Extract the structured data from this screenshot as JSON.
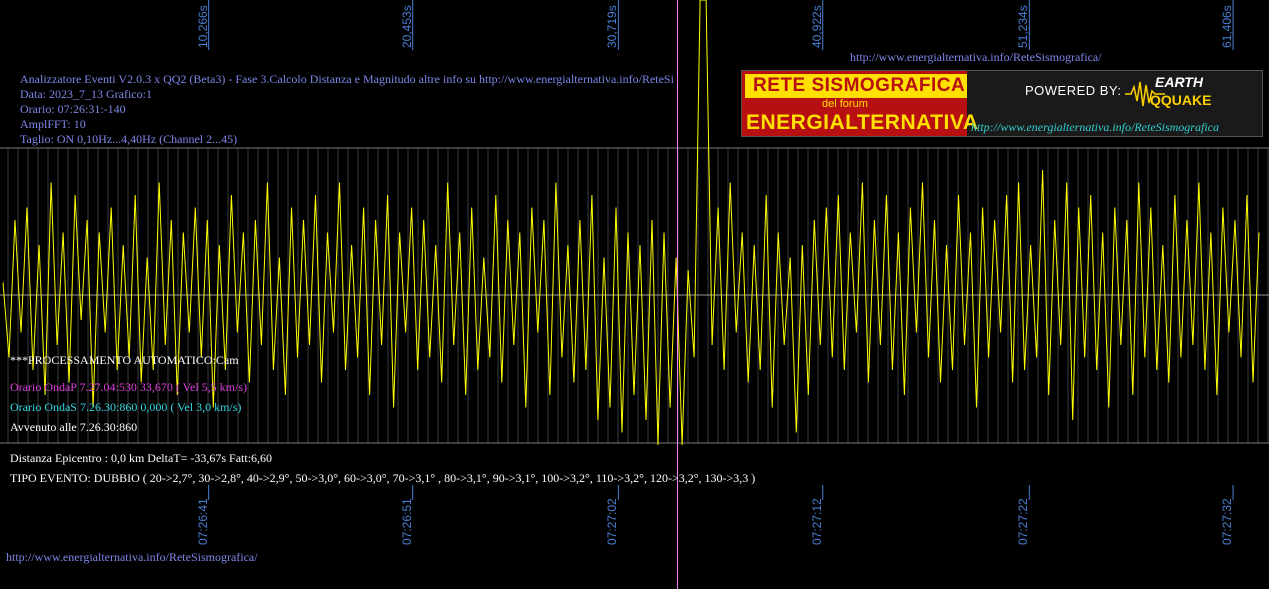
{
  "header": {
    "title_line": "Analizzatore Eventi V2.0.3 x QQ2 (Beta3) - Fase 3.Calcolo Distanza e Magnitudo altre info su http://www.energialternativa.info/ReteSi",
    "data_line": "Data: 2023_7_13 Grafico:1",
    "orario_line": "Orario: 07:26:31:-140",
    "ampl_line": "AmplFFT: 10",
    "taglio_line": "Taglio: ON 0,10Hz...4,40Hz      (Channel 2...45)"
  },
  "top_url": "http://www.energialternativa.info/ReteSismografica/",
  "bottom_url": "http://www.energialternativa.info/ReteSismografica/",
  "logo": {
    "line1": "RETE SISMOGRAFICA",
    "line2": "del forum",
    "line3": "ENERGIALTERNATIVA",
    "powered": "POWERED BY:",
    "brand1": "EARTH",
    "brand2": "QQUAKE",
    "url": "http://www.energialternativa.info/ReteSismografica"
  },
  "processing": {
    "auto": "***PROCESSAMENTO AUTOMATICO:Cam",
    "onda_p": "Orario OndaP 7.27.04:530  33,670 ( Vel 5,5 km/s)",
    "onda_s": "Orario OndaS 7.26.30:860  0,000 ( Vel 3,0 km/s)",
    "avvenuto": "Avvenuto alle 7.26.30:860",
    "distanza": "Distanza Epicentro : 0,0 km DeltaT= -33,67s  Fatt:6,60",
    "tipo": "TIPO EVENTO: DUBBIO ( 20->2,7°, 30->2,8°, 40->2,9°, 50->3,0°, 60->3,0°, 70->3,1° , 80->3,1°, 90->3,1°, 100->3,2°, 110->3,2°, 120->3,2°, 130->3,3 )"
  },
  "colors": {
    "background": "#000000",
    "trace": "#ffff00",
    "grid": "#6a6a6a",
    "tick_text": "#4a7fd4",
    "cursor": "#ff80ff",
    "header_text": "#7e86e8"
  },
  "chart_data": {
    "type": "line",
    "title": "",
    "xlabel": "",
    "ylabel": "",
    "top_ticks": [
      "10,266s",
      "20,453s",
      "30,719s",
      "40,922s",
      "51,234s",
      "61,406s"
    ],
    "top_tick_values": [
      10.266,
      20.453,
      30.719,
      40.922,
      51.234,
      61.406
    ],
    "bottom_ticks": [
      "07:26:41",
      "07:26:51",
      "07:27:02",
      "07:27:12",
      "07:27:22",
      "07:27:32"
    ],
    "bottom_tick_values_s": [
      10.266,
      20.453,
      30.719,
      40.922,
      51.234,
      61.406
    ],
    "xlim": [
      0,
      63
    ],
    "cursor_x_s": 33.67,
    "series": [
      {
        "values_x_s": [
          0.0,
          0.3,
          0.6,
          0.9,
          1.2,
          1.5,
          1.8,
          2.1,
          2.4,
          2.7,
          3.0,
          3.3,
          3.6,
          3.9,
          4.2,
          4.5,
          4.8,
          5.1,
          5.4,
          5.7,
          6.0,
          6.3,
          6.6,
          6.9,
          7.2,
          7.5,
          7.8,
          8.1,
          8.4,
          8.7,
          9.0,
          9.3,
          9.6,
          9.9,
          10.2,
          10.5,
          10.8,
          11.1,
          11.4,
          11.7,
          12.0,
          12.3,
          12.6,
          12.9,
          13.2,
          13.5,
          13.8,
          14.1,
          14.4,
          14.7,
          15.0,
          15.3,
          15.6,
          15.9,
          16.2,
          16.5,
          16.8,
          17.1,
          17.4,
          17.7,
          18.0,
          18.3,
          18.6,
          18.9,
          19.2,
          19.5,
          19.8,
          20.1,
          20.4,
          20.7,
          21.0,
          21.3,
          21.6,
          21.9,
          22.2,
          22.5,
          22.8,
          23.1,
          23.4,
          23.7,
          24.0,
          24.3,
          24.6,
          24.9,
          25.2,
          25.5,
          25.8,
          26.1,
          26.4,
          26.7,
          27.0,
          27.3,
          27.6,
          27.9,
          28.2,
          28.5,
          28.8,
          29.1,
          29.4,
          29.7,
          30.0,
          30.3,
          30.6,
          30.9,
          31.2,
          31.5,
          31.8,
          32.1,
          32.4,
          32.7,
          33.0,
          33.3,
          33.6,
          33.9,
          34.2,
          34.5,
          34.8,
          35.1,
          35.4,
          35.7,
          36.0,
          36.3,
          36.6,
          36.9,
          37.2,
          37.5,
          37.8,
          38.1,
          38.4,
          38.7,
          39.0,
          39.3,
          39.6,
          39.9,
          40.2,
          40.5,
          40.8,
          41.1,
          41.4,
          41.7,
          42.0,
          42.3,
          42.6,
          42.9,
          43.2,
          43.5,
          43.8,
          44.1,
          44.4,
          44.7,
          45.0,
          45.3,
          45.6,
          45.9,
          46.2,
          46.5,
          46.8,
          47.1,
          47.4,
          47.7,
          48.0,
          48.3,
          48.6,
          48.9,
          49.2,
          49.5,
          49.8,
          50.1,
          50.4,
          50.7,
          51.0,
          51.3,
          51.6,
          51.9,
          52.2,
          52.5,
          52.8,
          53.1,
          53.4,
          53.7,
          54.0,
          54.3,
          54.6,
          54.9,
          55.2,
          55.5,
          55.8,
          56.1,
          56.4,
          56.7,
          57.0,
          57.3,
          57.6,
          57.9,
          58.2,
          58.5,
          58.8,
          59.1,
          59.4,
          59.7,
          60.0,
          60.3,
          60.6,
          60.9,
          61.2,
          61.5,
          61.8,
          62.1,
          62.4,
          62.7
        ],
        "values_y": [
          0.1,
          -0.5,
          0.6,
          -0.3,
          0.7,
          -0.6,
          0.4,
          -0.8,
          0.9,
          -0.4,
          0.5,
          -0.7,
          0.8,
          -0.2,
          0.6,
          -0.9,
          0.5,
          -0.3,
          0.7,
          -0.6,
          0.4,
          -0.5,
          0.8,
          -0.7,
          0.3,
          -0.6,
          0.9,
          -0.4,
          0.6,
          -0.8,
          0.5,
          -0.3,
          0.7,
          -0.5,
          0.6,
          -0.9,
          0.4,
          -0.6,
          0.8,
          -0.3,
          0.5,
          -0.7,
          0.6,
          -0.4,
          0.9,
          -0.6,
          0.3,
          -0.8,
          0.7,
          -0.5,
          0.6,
          -0.4,
          0.8,
          -0.7,
          0.5,
          -0.3,
          0.9,
          -0.6,
          0.4,
          -0.5,
          0.7,
          -0.8,
          0.6,
          -0.4,
          0.8,
          -0.9,
          0.5,
          -0.3,
          0.7,
          -0.6,
          0.6,
          -0.5,
          0.4,
          -0.7,
          0.9,
          -0.4,
          0.5,
          -0.8,
          0.7,
          -0.6,
          0.3,
          -0.5,
          0.8,
          -0.7,
          0.6,
          -0.4,
          0.5,
          -0.9,
          0.7,
          -0.3,
          0.6,
          -0.8,
          0.9,
          -0.5,
          0.4,
          -0.7,
          0.6,
          -0.6,
          0.8,
          -1.0,
          0.3,
          -0.9,
          0.7,
          -1.1,
          0.5,
          -0.8,
          0.4,
          -1.0,
          0.6,
          -1.2,
          0.5,
          -0.9,
          0.3,
          -1.2,
          0.2,
          -0.5,
          3.5,
          2.8,
          -0.4,
          0.7,
          -0.6,
          0.9,
          -0.3,
          0.5,
          -0.7,
          0.4,
          -0.6,
          0.8,
          -0.9,
          0.5,
          -0.4,
          0.3,
          -1.1,
          0.4,
          -0.8,
          0.6,
          -0.4,
          0.7,
          -0.5,
          0.8,
          -0.6,
          0.5,
          -0.3,
          0.9,
          -0.7,
          0.6,
          -0.4,
          0.8,
          -0.6,
          0.5,
          -0.8,
          0.7,
          -0.3,
          0.9,
          -0.5,
          0.6,
          -0.7,
          0.4,
          -0.6,
          0.8,
          -0.4,
          0.5,
          -0.9,
          0.7,
          -0.5,
          0.6,
          -0.3,
          0.8,
          -0.7,
          0.9,
          -0.6,
          0.4,
          -0.5,
          1.0,
          -0.8,
          0.6,
          -0.4,
          0.9,
          -1.0,
          0.7,
          -0.5,
          0.8,
          -0.6,
          0.5,
          -0.9,
          0.7,
          -0.4,
          0.6,
          -0.8,
          0.9,
          -0.5,
          0.7,
          -0.6,
          0.4,
          -0.7,
          0.8,
          -0.5,
          0.6,
          -0.4,
          0.9,
          -0.6,
          0.5,
          -0.8,
          0.7,
          -0.3,
          0.6,
          -0.5,
          0.8,
          -0.7,
          0.5,
          -0.4,
          0.9,
          -0.6,
          0.4,
          -0.3,
          0.7,
          -0.5,
          0.6
        ]
      }
    ],
    "grid": true
  }
}
